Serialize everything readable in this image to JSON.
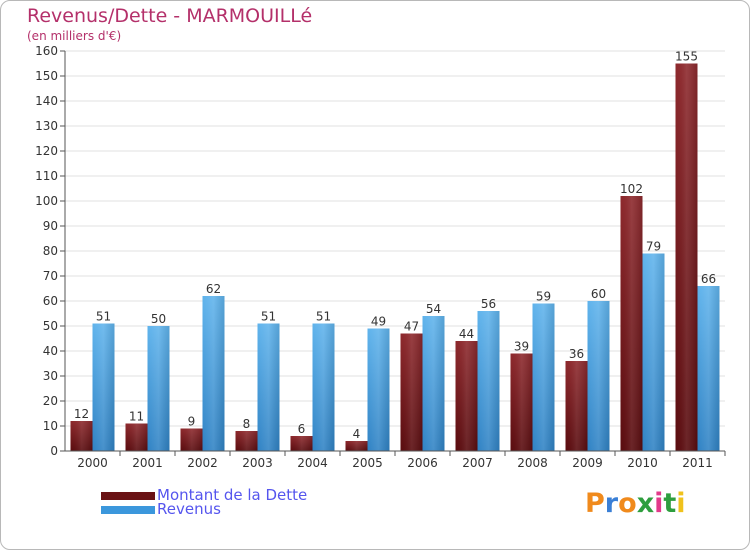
{
  "colors": {
    "dette": "#7a1f22",
    "dette_top": "#9b2f33",
    "revenus": "#4ba7e6",
    "revenus_dark": "#2f86c8",
    "title": "#b4306a",
    "legend_text": "#5555ee",
    "axis": "#555555",
    "grid": "#e0e0e0",
    "background": "#ffffff"
  },
  "chart_data": {
    "type": "bar",
    "title": "Revenus/Dette - MARMOUILLé",
    "subtitle": "(en milliers d'€)",
    "xlabel": "",
    "ylabel": "",
    "ylim": [
      0,
      160
    ],
    "ytick_step": 10,
    "categories": [
      "2000",
      "2001",
      "2002",
      "2003",
      "2004",
      "2005",
      "2006",
      "2007",
      "2008",
      "2009",
      "2010",
      "2011"
    ],
    "series": [
      {
        "name": "Montant de la Dette",
        "color": "#7a1f22",
        "values": [
          12,
          11,
          9,
          8,
          6,
          4,
          47,
          44,
          39,
          36,
          102,
          155
        ]
      },
      {
        "name": "Revenus",
        "color": "#4ba7e6",
        "values": [
          51,
          50,
          62,
          51,
          51,
          49,
          54,
          56,
          59,
          60,
          79,
          66
        ]
      }
    ],
    "legend_position": "bottom-left"
  },
  "legend": {
    "dette_label": "Montant de la Dette",
    "revenus_label": "Revenus"
  },
  "logo": {
    "letters": [
      "P",
      "r",
      "o",
      "x",
      "i",
      "t",
      "i"
    ],
    "letter_colors": [
      "#f08a1c",
      "#3a7fd6",
      "#f08a1c",
      "#2e9e3e",
      "#e23a8a",
      "#2e9e3e",
      "#f0c21c"
    ]
  }
}
